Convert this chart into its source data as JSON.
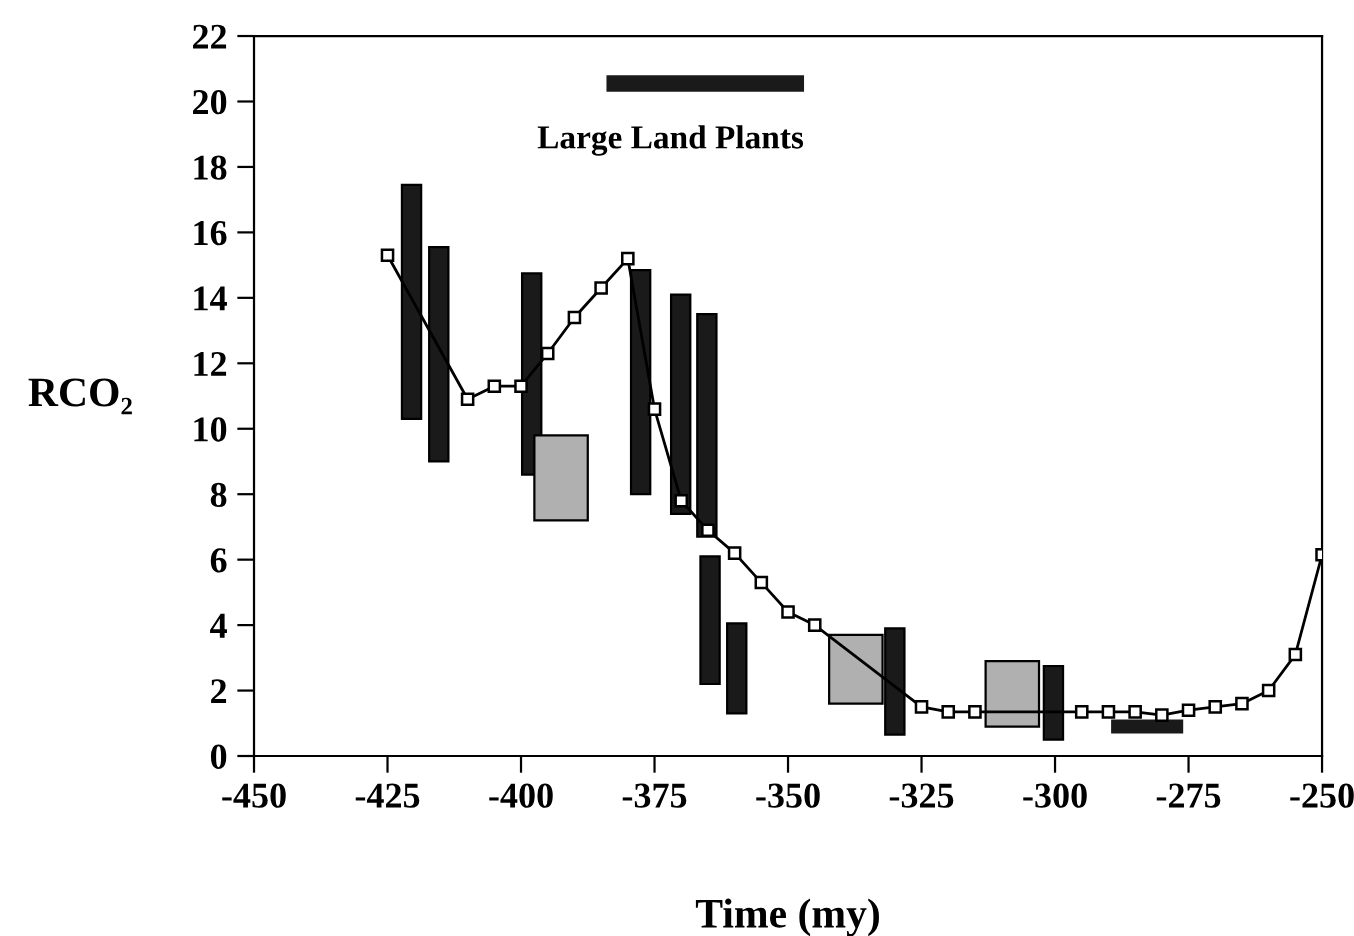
{
  "chart_data": {
    "type": "line",
    "xlabel": "Time (my)",
    "ylabel": "RCO₂",
    "xlim": [
      -450,
      -250
    ],
    "xticks": [
      -450,
      -425,
      -400,
      -375,
      -350,
      -325,
      -300,
      -275,
      -250
    ],
    "ylim": [
      0,
      22
    ],
    "yticks": [
      0,
      2,
      4,
      6,
      8,
      10,
      12,
      14,
      16,
      18,
      20,
      22
    ],
    "grid": false,
    "legend": false,
    "annotations": [
      "Large Land Plants"
    ],
    "series": [
      {
        "color": "#000000",
        "marker": "square",
        "line_style": "solid",
        "x": [
          -425,
          -410,
          -405,
          -400,
          -395,
          -390,
          -385,
          -380,
          -375,
          -370,
          -365,
          -360,
          -355,
          -350,
          -345,
          -325,
          -320,
          -315,
          -295,
          -290,
          -285,
          -280,
          -275,
          -270,
          -265,
          -260,
          -255,
          -250
        ],
        "values": [
          15.3,
          10.9,
          11.3,
          11.3,
          12.3,
          13.4,
          14.3,
          15.2,
          10.6,
          7.8,
          6.9,
          6.2,
          5.3,
          4.4,
          4.0,
          1.5,
          1.35,
          1.35,
          1.35,
          1.35,
          1.35,
          1.25,
          1.4,
          1.5,
          1.6,
          2.0,
          3.1,
          6.15
        ]
      },
      {
        "type": "bar",
        "color": "#1a1a1a",
        "x": [
          -420.5,
          -415.4,
          -398,
          -377.6,
          -370.1,
          -365.2,
          -364.6,
          -359.6,
          -330,
          -300.3
        ],
        "base": [
          10.3,
          9.0,
          8.6,
          8.0,
          7.4,
          6.7,
          2.2,
          1.3,
          0.65,
          0.5
        ],
        "values": [
          7.15,
          6.55,
          6.15,
          6.85,
          6.7,
          6.8,
          3.9,
          2.75,
          3.25,
          2.25
        ]
      },
      {
        "type": "bar",
        "color": "#b0b0b0",
        "x": [
          -392.5,
          -337.3,
          -308
        ],
        "base": [
          7.2,
          1.6,
          0.9
        ],
        "values": [
          2.6,
          2.1,
          2.0
        ]
      },
      {
        "type": "line",
        "color": "#1a1a1a",
        "marker": "none",
        "x": [
          -384,
          -347
        ],
        "values": [
          20.55,
          20.55
        ]
      },
      {
        "type": "line",
        "color": "#1a1a1a",
        "marker": "none",
        "x": [
          -289.5,
          -276
        ],
        "values": [
          0.9,
          0.9
        ]
      }
    ]
  }
}
